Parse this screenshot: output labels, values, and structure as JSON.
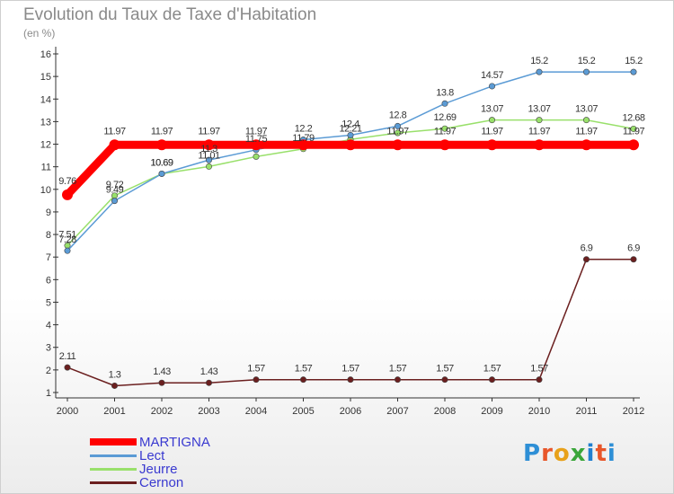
{
  "header": {
    "title": "Evolution du Taux de Taxe d'Habitation",
    "subtitle": "(en %)"
  },
  "logo": {
    "text": "Proxiti",
    "letter_colors": [
      "#2e8fd6",
      "#e8562a",
      "#e8a11a",
      "#3aa63a",
      "#1f7fd0",
      "#e8562a",
      "#2e8fd6"
    ]
  },
  "legend": {
    "items": [
      {
        "label": "MARTIGNA",
        "color": "#ff0000"
      },
      {
        "label": "Lect",
        "color": "#5b9bd5"
      },
      {
        "label": "Jeurre",
        "color": "#99e06b"
      },
      {
        "label": "Cernon",
        "color": "#6b1f1f"
      }
    ]
  },
  "chart_data": {
    "type": "line",
    "title": "Evolution du Taux de Taxe d'Habitation",
    "subtitle": "(en %)",
    "categories": [
      "2000",
      "2001",
      "2002",
      "2003",
      "2004",
      "2005",
      "2006",
      "2007",
      "2008",
      "2009",
      "2010",
      "2011",
      "2012"
    ],
    "ylim": [
      1,
      16
    ],
    "yticks": [
      1,
      2,
      3,
      4,
      5,
      6,
      7,
      8,
      9,
      10,
      11,
      12,
      13,
      14,
      15,
      16
    ],
    "grid": false,
    "legend_position": "bottom-left",
    "series": [
      {
        "name": "MARTIGNA",
        "color": "#ff0000",
        "values": [
          9.76,
          11.97,
          11.97,
          11.97,
          11.97,
          11.97,
          11.97,
          11.97,
          11.97,
          11.97,
          11.97,
          11.97,
          11.97
        ],
        "labels": [
          "9.76",
          "11.97",
          "11.97",
          "11.97",
          "11.97",
          "",
          "",
          "11.97",
          "11.97",
          "11.97",
          "11.97",
          "11.97",
          "11.97"
        ]
      },
      {
        "name": "Lect",
        "color": "#5b9bd5",
        "values": [
          7.28,
          9.49,
          10.69,
          11.3,
          11.75,
          12.2,
          12.4,
          12.8,
          13.8,
          14.57,
          15.2,
          15.2,
          15.2
        ],
        "labels": [
          "7.28",
          "9.49",
          "10.69",
          "11.3",
          "11.75",
          "12.2",
          "12.4",
          "12.8",
          "13.8",
          "14.57",
          "15.2",
          "15.2",
          "15.2"
        ]
      },
      {
        "name": "Jeurre",
        "color": "#99e06b",
        "values": [
          7.51,
          9.72,
          10.69,
          11.01,
          11.45,
          11.79,
          12.21,
          12.5,
          12.69,
          13.07,
          13.07,
          13.07,
          12.68
        ],
        "labels": [
          "7.51",
          "9.72",
          "10.69",
          "11.01",
          "",
          "11.79",
          "12.21",
          "",
          "12.69",
          "13.07",
          "13.07",
          "13.07",
          "12.68"
        ]
      },
      {
        "name": "Cernon",
        "color": "#6b1f1f",
        "values": [
          2.11,
          1.3,
          1.43,
          1.43,
          1.57,
          1.57,
          1.57,
          1.57,
          1.57,
          1.57,
          1.57,
          6.9,
          6.9
        ],
        "labels": [
          "2.11",
          "1.3",
          "1.43",
          "1.43",
          "1.57",
          "1.57",
          "1.57",
          "1.57",
          "1.57",
          "1.57",
          "1.57",
          "6.9",
          "6.9"
        ]
      }
    ]
  }
}
